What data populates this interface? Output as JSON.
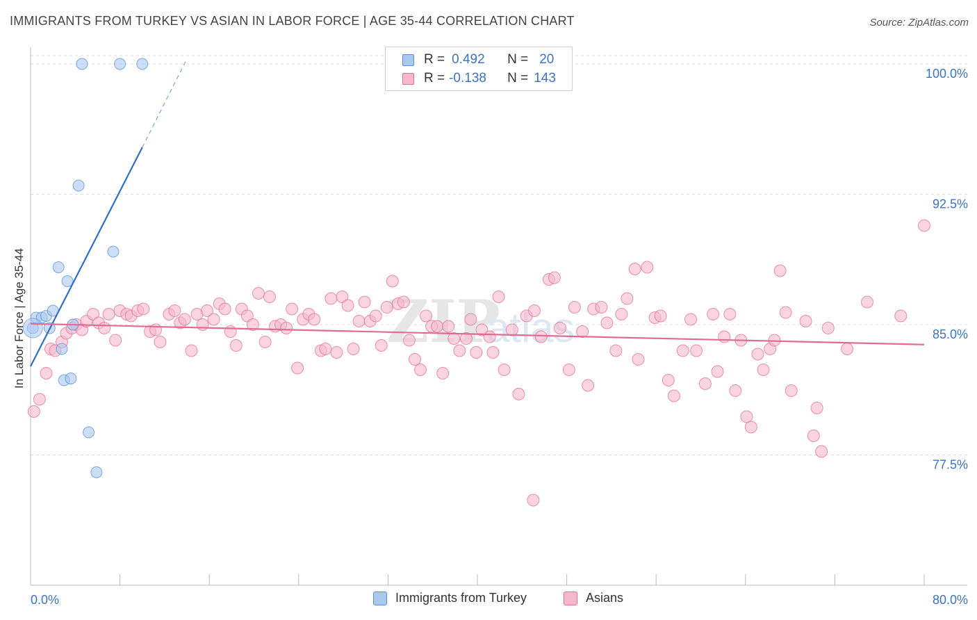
{
  "header": {
    "title": "IMMIGRANTS FROM TURKEY VS ASIAN IN LABOR FORCE | AGE 35-44 CORRELATION CHART",
    "source": "Source: ZipAtlas.com"
  },
  "watermark": {
    "text": "ZIPatlas"
  },
  "stats_box": {
    "rows": [
      {
        "r_label": "R =",
        "r_value": "0.492",
        "n_label": "N =",
        "n_value": "20",
        "color": "#a9c8f0"
      },
      {
        "r_label": "R =",
        "r_value": "-0.138",
        "n_label": "N =",
        "n_value": "143",
        "color": "#f7b8cb"
      }
    ]
  },
  "legend": {
    "items": [
      {
        "label": "Immigrants from Turkey",
        "color": "#a9c8f0"
      },
      {
        "label": "Asians",
        "color": "#f7b8cb"
      }
    ]
  },
  "chart_data": {
    "type": "scatter",
    "title": "IMMIGRANTS FROM TURKEY VS ASIAN IN LABOR FORCE | AGE 35-44 CORRELATION CHART",
    "xlabel": "",
    "ylabel": "In Labor Force | Age 35-44",
    "xlim": [
      0,
      80
    ],
    "ylim": [
      70,
      100.8
    ],
    "x_tick_labels": [
      {
        "value": 0,
        "label": "0.0%"
      },
      {
        "value": 80,
        "label": "80.0%"
      }
    ],
    "y_ticks": [
      {
        "value": 100,
        "label": "100.0%"
      },
      {
        "value": 92.5,
        "label": "92.5%"
      },
      {
        "value": 85,
        "label": "85.0%"
      },
      {
        "value": 77.5,
        "label": "77.5%"
      }
    ],
    "grid": true,
    "series": [
      {
        "name": "Immigrants from Turkey",
        "color": "#5b8fd6",
        "fill": "#a9c8f0",
        "points": [
          [
            0.2,
            84.8
          ],
          [
            0.5,
            85.4
          ],
          [
            1.0,
            85.4
          ],
          [
            1.4,
            85.5
          ],
          [
            1.7,
            84.8
          ],
          [
            2.0,
            85.8
          ],
          [
            2.5,
            88.3
          ],
          [
            2.8,
            83.6
          ],
          [
            3.0,
            81.8
          ],
          [
            3.3,
            87.5
          ],
          [
            3.6,
            81.9
          ],
          [
            3.8,
            85.0
          ],
          [
            4.3,
            93.0
          ],
          [
            4.6,
            100.0
          ],
          [
            5.2,
            78.8
          ],
          [
            5.9,
            76.5
          ],
          [
            7.4,
            89.2
          ],
          [
            8.0,
            100.0
          ],
          [
            10.0,
            100.0
          ]
        ],
        "trend": {
          "x0": 0.0,
          "y0": 82.6,
          "x1": 10.0,
          "y1": 95.2,
          "dash_to_x": 14.0,
          "dash_to_y": 100.3
        }
      },
      {
        "name": "Asians",
        "color": "#e36f96",
        "fill": "#f7b8cb",
        "points": [
          [
            0.3,
            80.0
          ],
          [
            0.8,
            80.7
          ],
          [
            1.4,
            82.2
          ],
          [
            1.8,
            83.6
          ],
          [
            2.2,
            83.5
          ],
          [
            2.8,
            84.0
          ],
          [
            3.2,
            84.5
          ],
          [
            3.7,
            84.8
          ],
          [
            4.1,
            85.0
          ],
          [
            4.6,
            84.7
          ],
          [
            5.0,
            85.2
          ],
          [
            5.6,
            85.6
          ],
          [
            6.1,
            85.1
          ],
          [
            6.6,
            84.8
          ],
          [
            7.0,
            85.6
          ],
          [
            7.6,
            84.1
          ],
          [
            8.0,
            85.8
          ],
          [
            8.6,
            85.6
          ],
          [
            9.0,
            85.5
          ],
          [
            9.6,
            85.8
          ],
          [
            10.1,
            85.9
          ],
          [
            10.7,
            84.6
          ],
          [
            11.2,
            84.7
          ],
          [
            11.6,
            84.0
          ],
          [
            12.4,
            85.6
          ],
          [
            12.9,
            85.8
          ],
          [
            13.4,
            85.1
          ],
          [
            13.8,
            85.3
          ],
          [
            14.4,
            83.5
          ],
          [
            14.9,
            85.6
          ],
          [
            15.4,
            85.0
          ],
          [
            15.8,
            85.8
          ],
          [
            16.4,
            85.3
          ],
          [
            16.9,
            86.2
          ],
          [
            17.4,
            85.9
          ],
          [
            17.9,
            84.6
          ],
          [
            18.4,
            83.8
          ],
          [
            18.9,
            85.9
          ],
          [
            19.4,
            85.5
          ],
          [
            19.9,
            85.0
          ],
          [
            20.4,
            86.8
          ],
          [
            21.0,
            84.0
          ],
          [
            21.4,
            86.6
          ],
          [
            21.9,
            84.9
          ],
          [
            22.4,
            85.0
          ],
          [
            22.9,
            84.8
          ],
          [
            23.4,
            85.9
          ],
          [
            23.9,
            82.5
          ],
          [
            24.4,
            85.3
          ],
          [
            24.9,
            85.6
          ],
          [
            25.4,
            85.3
          ],
          [
            26.0,
            83.5
          ],
          [
            26.4,
            83.6
          ],
          [
            26.9,
            86.5
          ],
          [
            27.4,
            83.4
          ],
          [
            27.9,
            86.6
          ],
          [
            28.4,
            86.1
          ],
          [
            28.9,
            83.6
          ],
          [
            29.4,
            85.2
          ],
          [
            29.9,
            86.3
          ],
          [
            30.4,
            85.2
          ],
          [
            30.9,
            85.5
          ],
          [
            31.4,
            83.8
          ],
          [
            31.9,
            86.0
          ],
          [
            32.4,
            87.5
          ],
          [
            32.9,
            86.2
          ],
          [
            33.4,
            86.3
          ],
          [
            33.9,
            84.1
          ],
          [
            34.4,
            83.0
          ],
          [
            34.9,
            82.4
          ],
          [
            35.4,
            85.5
          ],
          [
            35.9,
            84.9
          ],
          [
            36.4,
            84.9
          ],
          [
            36.9,
            82.2
          ],
          [
            37.4,
            84.9
          ],
          [
            37.9,
            84.2
          ],
          [
            38.4,
            83.5
          ],
          [
            39.0,
            84.2
          ],
          [
            39.4,
            85.3
          ],
          [
            39.9,
            83.4
          ],
          [
            40.4,
            84.7
          ],
          [
            41.1,
            84.3
          ],
          [
            41.4,
            83.4
          ],
          [
            41.9,
            86.6
          ],
          [
            42.4,
            82.4
          ],
          [
            43.1,
            84.7
          ],
          [
            43.7,
            81.0
          ],
          [
            44.4,
            85.5
          ],
          [
            45.1,
            85.8
          ],
          [
            45.7,
            84.3
          ],
          [
            46.4,
            87.6
          ],
          [
            46.9,
            87.7
          ],
          [
            47.4,
            84.8
          ],
          [
            48.2,
            82.4
          ],
          [
            48.7,
            86.0
          ],
          [
            49.4,
            84.6
          ],
          [
            49.9,
            81.5
          ],
          [
            50.4,
            85.9
          ],
          [
            51.1,
            86.0
          ],
          [
            51.6,
            85.1
          ],
          [
            52.4,
            83.5
          ],
          [
            52.9,
            85.6
          ],
          [
            53.4,
            86.5
          ],
          [
            54.1,
            88.2
          ],
          [
            54.4,
            83.0
          ],
          [
            55.2,
            88.3
          ],
          [
            55.9,
            85.4
          ],
          [
            56.4,
            85.5
          ],
          [
            57.1,
            81.8
          ],
          [
            57.6,
            80.9
          ],
          [
            58.4,
            83.5
          ],
          [
            59.1,
            85.3
          ],
          [
            59.6,
            83.5
          ],
          [
            60.4,
            81.6
          ],
          [
            61.1,
            85.6
          ],
          [
            61.5,
            82.3
          ],
          [
            62.1,
            84.3
          ],
          [
            62.6,
            85.6
          ],
          [
            63.1,
            81.2
          ],
          [
            63.6,
            84.1
          ],
          [
            64.1,
            79.7
          ],
          [
            64.5,
            79.1
          ],
          [
            65.1,
            83.3
          ],
          [
            65.6,
            82.4
          ],
          [
            66.2,
            83.6
          ],
          [
            66.6,
            84.1
          ],
          [
            67.1,
            88.1
          ],
          [
            67.6,
            85.7
          ],
          [
            68.1,
            81.2
          ],
          [
            69.4,
            85.2
          ],
          [
            70.1,
            78.6
          ],
          [
            70.4,
            80.2
          ],
          [
            70.8,
            77.7
          ],
          [
            71.4,
            84.8
          ],
          [
            73.1,
            83.6
          ],
          [
            74.9,
            86.3
          ],
          [
            77.9,
            85.5
          ],
          [
            80.0,
            90.7
          ],
          [
            45.0,
            74.9
          ]
        ],
        "trend": {
          "x0": 0.0,
          "y0": 85.05,
          "x1": 80.0,
          "y1": 83.85
        }
      }
    ]
  }
}
